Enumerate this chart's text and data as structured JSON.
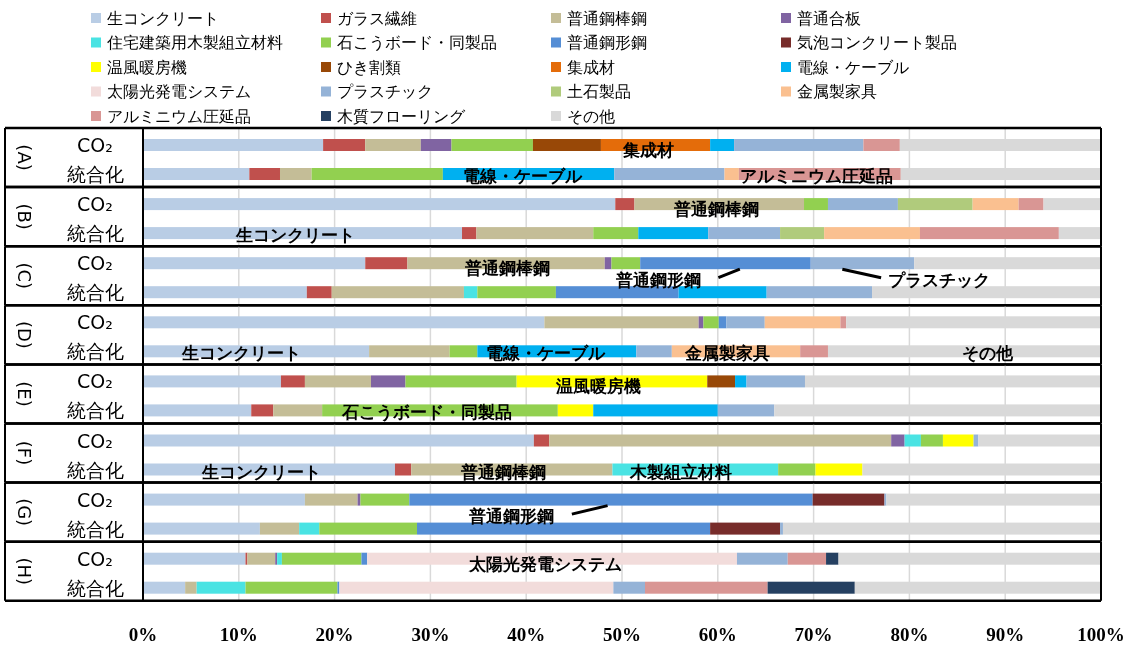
{
  "chart_data": [
    {
      "type": "bar",
      "orientation": "horizontal",
      "stacked": true,
      "categories": [
        "CO₂",
        "統合化"
      ],
      "ylabel": "(A)",
      "xlim": [
        0,
        100
      ],
      "xticks": [
        {
          "value": 0,
          "label": null
        },
        {
          "value": 10,
          "label": null
        },
        {
          "value": 20,
          "label": null
        },
        {
          "value": 30,
          "label": null
        },
        {
          "value": 40,
          "label": null
        },
        {
          "value": 50,
          "label": null
        },
        {
          "value": 60,
          "label": null
        },
        {
          "value": 70,
          "label": null
        },
        {
          "value": 80,
          "label": null
        },
        {
          "value": 90,
          "label": null
        },
        {
          "value": 100,
          "label": null
        }
      ],
      "grid": "x",
      "tick_labels": "y",
      "legend": "top",
      "series": [
        {
          "name": "生コンクリート",
          "color": "#b9cde5",
          "values": [
            18.8,
            11.1
          ]
        },
        {
          "name": "ガラス繊維",
          "color": "#c0504d",
          "values": [
            4.4,
            3.2
          ]
        },
        {
          "name": "普通鋼棒鋼",
          "color": "#c4bd97",
          "values": [
            5.8,
            3.3
          ]
        },
        {
          "name": "普通合板",
          "color": "#8064a2",
          "values": [
            3.2,
            null
          ]
        },
        {
          "name": "住宅建築用木製組立材料",
          "color": "#4ae3e3",
          "values": [
            null,
            null
          ]
        },
        {
          "name": "石こうボード・同製品",
          "color": "#92d050",
          "values": [
            8.5,
            13.7
          ]
        },
        {
          "name": "普通鋼形鋼",
          "color": "#558ed5",
          "values": [
            null,
            null
          ]
        },
        {
          "name": "気泡コンクリート製品",
          "color": "#772c2a",
          "values": [
            null,
            null
          ]
        },
        {
          "name": "温風暖房機",
          "color": "#ffff00",
          "values": [
            null,
            null
          ]
        },
        {
          "name": "ひき割類",
          "color": "#984807",
          "values": [
            7.1,
            null
          ]
        },
        {
          "name": "集成材",
          "color": "#e46c0a",
          "values": [
            11.4,
            null
          ]
        },
        {
          "name": "電線・ケーブル",
          "color": "#00b0f0",
          "values": [
            2.5,
            17.9
          ]
        },
        {
          "name": "太陽光発電システム",
          "color": "#f2dcdb",
          "values": [
            null,
            null
          ]
        },
        {
          "name": "プラスチック",
          "color": "#95b3d7",
          "values": [
            13.5,
            11.5
          ]
        },
        {
          "name": "土石製品",
          "color": "#b0cb7c",
          "values": [
            null,
            null
          ]
        },
        {
          "name": "金属製家具",
          "color": "#fac090",
          "values": [
            null,
            1.5
          ]
        },
        {
          "name": "アルミニウム圧延品",
          "color": "#d99694",
          "values": [
            3.8,
            16.9
          ]
        },
        {
          "name": "木質フローリング",
          "color": "#254061",
          "values": [
            null,
            null
          ]
        },
        {
          "name": "その他",
          "color": "#d9d9d9",
          "values": [
            21.0,
            20.9
          ]
        }
      ],
      "annotations": [
        "集成材",
        "電線・ケーブル",
        "アルミニウム圧延品"
      ]
    },
    {
      "type": "bar",
      "orientation": "horizontal",
      "stacked": true,
      "categories": [
        "CO₂",
        "統合化"
      ],
      "ylabel": "(B)",
      "xlim": [
        0,
        100
      ],
      "xticks": [
        {
          "value": 0,
          "label": null
        },
        {
          "value": 10,
          "label": null
        },
        {
          "value": 20,
          "label": null
        },
        {
          "value": 30,
          "label": null
        },
        {
          "value": 40,
          "label": null
        },
        {
          "value": 50,
          "label": null
        },
        {
          "value": 60,
          "label": null
        },
        {
          "value": 70,
          "label": null
        },
        {
          "value": 80,
          "label": null
        },
        {
          "value": 90,
          "label": null
        },
        {
          "value": 100,
          "label": null
        }
      ],
      "grid": "x",
      "tick_labels": "y",
      "series": [
        {
          "color": "#b9cde5",
          "values": [
            49.3,
            33.3
          ]
        },
        {
          "color": "#c0504d",
          "values": [
            2.0,
            1.5
          ]
        },
        {
          "color": "#c4bd97",
          "values": [
            17.7,
            12.2
          ]
        },
        {
          "color": "#92d050",
          "values": [
            2.5,
            4.7
          ]
        },
        {
          "color": "#00b0f0",
          "values": [
            null,
            7.3
          ]
        },
        {
          "color": "#95b3d7",
          "values": [
            7.3,
            7.5
          ]
        },
        {
          "color": "#b0cb7c",
          "values": [
            7.8,
            4.6
          ]
        },
        {
          "color": "#fac090",
          "values": [
            4.8,
            10.0
          ]
        },
        {
          "color": "#d99694",
          "values": [
            2.6,
            14.5
          ]
        },
        {
          "color": "#d9d9d9",
          "values": [
            6.0,
            4.4
          ]
        }
      ],
      "annotations": [
        "普通鋼棒鋼",
        "生コンクリート"
      ]
    },
    {
      "type": "bar",
      "orientation": "horizontal",
      "stacked": true,
      "categories": [
        "CO₂",
        "統合化"
      ],
      "ylabel": "(C)",
      "xlim": [
        0,
        100
      ],
      "xticks": [
        {
          "value": 0,
          "label": null
        },
        {
          "value": 10,
          "label": null
        },
        {
          "value": 20,
          "label": null
        },
        {
          "value": 30,
          "label": null
        },
        {
          "value": 40,
          "label": null
        },
        {
          "value": 50,
          "label": null
        },
        {
          "value": 60,
          "label": null
        },
        {
          "value": 70,
          "label": null
        },
        {
          "value": 80,
          "label": null
        },
        {
          "value": 90,
          "label": null
        },
        {
          "value": 100,
          "label": null
        }
      ],
      "grid": "x",
      "tick_labels": "y",
      "series": [
        {
          "color": "#b9cde5",
          "values": [
            23.2,
            17.1
          ]
        },
        {
          "color": "#c0504d",
          "values": [
            4.4,
            2.6
          ]
        },
        {
          "color": "#c4bd97",
          "values": [
            20.6,
            13.8
          ]
        },
        {
          "color": "#8064a2",
          "values": [
            0.7,
            null
          ]
        },
        {
          "color": "#4ae3e3",
          "values": [
            null,
            1.4
          ]
        },
        {
          "color": "#92d050",
          "values": [
            3.0,
            8.2
          ]
        },
        {
          "color": "#558ed5",
          "values": [
            17.8,
            12.8
          ]
        },
        {
          "color": "#00b0f0",
          "values": [
            null,
            9.2
          ]
        },
        {
          "color": "#95b3d7",
          "values": [
            10.8,
            11.0
          ]
        },
        {
          "color": "#d9d9d9",
          "values": [
            19.5,
            23.9
          ]
        }
      ],
      "annotations": [
        "普通鋼棒鋼",
        "普通鋼形鋼",
        "プラスチック"
      ]
    },
    {
      "type": "bar",
      "orientation": "horizontal",
      "stacked": true,
      "categories": [
        "CO₂",
        "統合化"
      ],
      "ylabel": "(D)",
      "xlim": [
        0,
        100
      ],
      "xticks": [
        {
          "value": 0,
          "label": null
        },
        {
          "value": 10,
          "label": null
        },
        {
          "value": 20,
          "label": null
        },
        {
          "value": 30,
          "label": null
        },
        {
          "value": 40,
          "label": null
        },
        {
          "value": 50,
          "label": null
        },
        {
          "value": 60,
          "label": null
        },
        {
          "value": 70,
          "label": null
        },
        {
          "value": 80,
          "label": null
        },
        {
          "value": 90,
          "label": null
        },
        {
          "value": 100,
          "label": null
        }
      ],
      "grid": "x",
      "tick_labels": "y",
      "series": [
        {
          "color": "#b9cde5",
          "values": [
            41.9,
            23.6
          ]
        },
        {
          "color": "#c4bd97",
          "values": [
            16.1,
            8.4
          ]
        },
        {
          "color": "#8064a2",
          "values": [
            0.5,
            null
          ]
        },
        {
          "color": "#92d050",
          "values": [
            1.6,
            2.9
          ]
        },
        {
          "color": "#558ed5",
          "values": [
            0.8,
            null
          ]
        },
        {
          "color": "#00b0f0",
          "values": [
            null,
            16.6
          ]
        },
        {
          "color": "#95b3d7",
          "values": [
            4.0,
            3.7
          ]
        },
        {
          "color": "#fac090",
          "values": [
            7.9,
            13.4
          ]
        },
        {
          "color": "#d99694",
          "values": [
            0.6,
            2.9
          ]
        },
        {
          "color": "#d9d9d9",
          "values": [
            26.6,
            28.5
          ]
        }
      ],
      "annotations": [
        "生コンクリート",
        "電線・ケーブル",
        "金属製家具",
        "その他"
      ]
    },
    {
      "type": "bar",
      "orientation": "horizontal",
      "stacked": true,
      "categories": [
        "CO₂",
        "統合化"
      ],
      "ylabel": "(E)",
      "xlim": [
        0,
        100
      ],
      "xticks": [
        {
          "value": 0,
          "label": null
        },
        {
          "value": 10,
          "label": null
        },
        {
          "value": 20,
          "label": null
        },
        {
          "value": 30,
          "label": null
        },
        {
          "value": 40,
          "label": null
        },
        {
          "value": 50,
          "label": null
        },
        {
          "value": 60,
          "label": null
        },
        {
          "value": 70,
          "label": null
        },
        {
          "value": 80,
          "label": null
        },
        {
          "value": 90,
          "label": null
        },
        {
          "value": 100,
          "label": null
        }
      ],
      "grid": "x",
      "tick_labels": "y",
      "series": [
        {
          "color": "#b9cde5",
          "values": [
            14.4,
            11.3
          ]
        },
        {
          "color": "#c0504d",
          "values": [
            2.5,
            2.3
          ]
        },
        {
          "color": "#c4bd97",
          "values": [
            6.9,
            5.1
          ]
        },
        {
          "color": "#8064a2",
          "values": [
            3.6,
            null
          ]
        },
        {
          "color": "#92d050",
          "values": [
            11.6,
            24.6
          ]
        },
        {
          "color": "#ffff00",
          "values": [
            19.9,
            3.7
          ]
        },
        {
          "color": "#984807",
          "values": [
            2.9,
            null
          ]
        },
        {
          "color": "#00b0f0",
          "values": [
            1.2,
            13.0
          ]
        },
        {
          "color": "#95b3d7",
          "values": [
            6.1,
            5.9
          ]
        },
        {
          "color": "#d9d9d9",
          "values": [
            30.9,
            34.1
          ]
        }
      ],
      "annotations": [
        "温風暖房機",
        "石こうボード・同製品"
      ]
    },
    {
      "type": "bar",
      "orientation": "horizontal",
      "stacked": true,
      "categories": [
        "CO₂",
        "統合化"
      ],
      "ylabel": "(F)",
      "xlim": [
        0,
        100
      ],
      "xticks": [
        {
          "value": 0,
          "label": null
        },
        {
          "value": 10,
          "label": null
        },
        {
          "value": 20,
          "label": null
        },
        {
          "value": 30,
          "label": null
        },
        {
          "value": 40,
          "label": null
        },
        {
          "value": 50,
          "label": null
        },
        {
          "value": 60,
          "label": null
        },
        {
          "value": 70,
          "label": null
        },
        {
          "value": 80,
          "label": null
        },
        {
          "value": 90,
          "label": null
        },
        {
          "value": 100,
          "label": null
        }
      ],
      "grid": "x",
      "tick_labels": "y",
      "series": [
        {
          "color": "#b9cde5",
          "values": [
            40.8,
            26.3
          ]
        },
        {
          "color": "#c0504d",
          "values": [
            1.6,
            1.7
          ]
        },
        {
          "color": "#c4bd97",
          "values": [
            35.7,
            21.0
          ]
        },
        {
          "color": "#8064a2",
          "values": [
            1.4,
            null
          ]
        },
        {
          "color": "#4ae3e3",
          "values": [
            1.7,
            17.3
          ]
        },
        {
          "color": "#92d050",
          "values": [
            2.3,
            3.9
          ]
        },
        {
          "color": "#ffff00",
          "values": [
            3.2,
            4.9
          ]
        },
        {
          "color": "#95b3d7",
          "values": [
            0.5,
            null
          ]
        },
        {
          "color": "#d9d9d9",
          "values": [
            12.8,
            24.9
          ]
        }
      ],
      "annotations": [
        "生コンクリート",
        "普通鋼棒鋼",
        "木製組立材料"
      ]
    },
    {
      "type": "bar",
      "orientation": "horizontal",
      "stacked": true,
      "categories": [
        "CO₂",
        "統合化"
      ],
      "ylabel": "(G)",
      "xlim": [
        0,
        100
      ],
      "xticks": [
        {
          "value": 0,
          "label": null
        },
        {
          "value": 10,
          "label": null
        },
        {
          "value": 20,
          "label": null
        },
        {
          "value": 30,
          "label": null
        },
        {
          "value": 40,
          "label": null
        },
        {
          "value": 50,
          "label": null
        },
        {
          "value": 60,
          "label": null
        },
        {
          "value": 70,
          "label": null
        },
        {
          "value": 80,
          "label": null
        },
        {
          "value": 90,
          "label": null
        },
        {
          "value": 100,
          "label": null
        }
      ],
      "grid": "x",
      "tick_labels": "y",
      "series": [
        {
          "color": "#b9cde5",
          "values": [
            16.9,
            12.2
          ]
        },
        {
          "color": "#c4bd97",
          "values": [
            5.5,
            4.1
          ]
        },
        {
          "color": "#8064a2",
          "values": [
            0.3,
            null
          ]
        },
        {
          "color": "#4ae3e3",
          "values": [
            null,
            2.1
          ]
        },
        {
          "color": "#92d050",
          "values": [
            5.1,
            10.2
          ]
        },
        {
          "color": "#558ed5",
          "values": [
            42.1,
            30.6
          ]
        },
        {
          "color": "#772c2a",
          "values": [
            7.5,
            7.3
          ]
        },
        {
          "color": "#95b3d7",
          "values": [
            0.2,
            0.3
          ]
        },
        {
          "color": "#d9d9d9",
          "values": [
            22.4,
            33.2
          ]
        }
      ],
      "annotations": [
        "普通鋼形鋼"
      ]
    },
    {
      "type": "bar",
      "orientation": "horizontal",
      "stacked": true,
      "categories": [
        "CO₂",
        "統合化"
      ],
      "ylabel": "(H)",
      "xlim": [
        0,
        100
      ],
      "xticks": [
        {
          "value": 0,
          "label": "0%"
        },
        {
          "value": 10,
          "label": "10%"
        },
        {
          "value": 20,
          "label": "20%"
        },
        {
          "value": 30,
          "label": "30%"
        },
        {
          "value": 40,
          "label": "40%"
        },
        {
          "value": 50,
          "label": "50%"
        },
        {
          "value": 60,
          "label": "60%"
        },
        {
          "value": 70,
          "label": "70%"
        },
        {
          "value": 80,
          "label": "80%"
        },
        {
          "value": 90,
          "label": "90%"
        },
        {
          "value": 100,
          "label": "100%"
        }
      ],
      "grid": "x",
      "series": [
        {
          "color": "#b9cde5",
          "values": [
            10.7,
            4.4
          ]
        },
        {
          "color": "#c0504d",
          "values": [
            0.2,
            null
          ]
        },
        {
          "color": "#c4bd97",
          "values": [
            2.9,
            1.2
          ]
        },
        {
          "color": "#8064a2",
          "values": [
            0.2,
            null
          ]
        },
        {
          "color": "#4ae3e3",
          "values": [
            0.5,
            5.1
          ]
        },
        {
          "color": "#92d050",
          "values": [
            8.3,
            9.6
          ]
        },
        {
          "color": "#558ed5",
          "values": [
            0.6,
            0.2
          ]
        },
        {
          "color": "#f2dcdb",
          "values": [
            38.6,
            28.6
          ]
        },
        {
          "color": "#95b3d7",
          "values": [
            5.3,
            3.3
          ]
        },
        {
          "color": "#d99694",
          "values": [
            4.0,
            12.8
          ]
        },
        {
          "color": "#254061",
          "values": [
            1.3,
            9.1
          ]
        },
        {
          "color": "#d9d9d9",
          "values": [
            27.4,
            25.7
          ]
        }
      ],
      "annotations": [
        "太陽光発電システム"
      ]
    }
  ]
}
